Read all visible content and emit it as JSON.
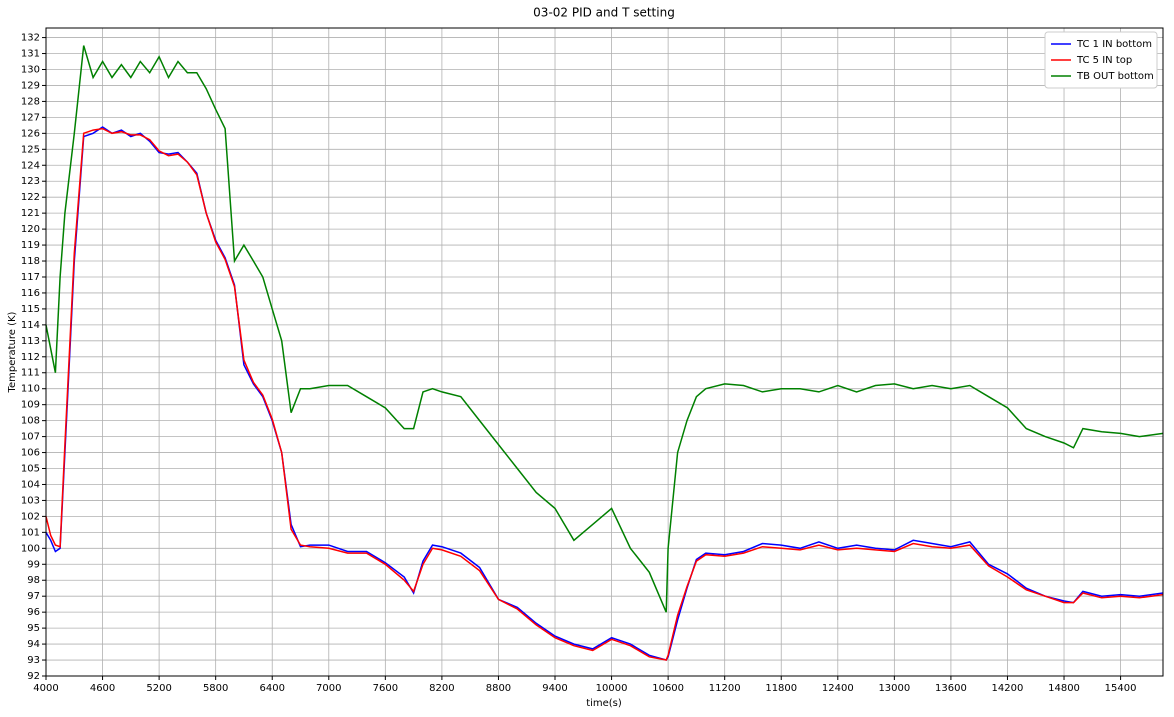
{
  "chart_data": {
    "type": "line",
    "title": "03-02 PID and T setting",
    "x_label": "time(s)",
    "y_label": "Temperature (K)",
    "x": [
      4000,
      4050,
      4100,
      4150,
      4200,
      4300,
      4400,
      4500,
      4600,
      4700,
      4800,
      4900,
      5000,
      5100,
      5200,
      5300,
      5400,
      5500,
      5600,
      5700,
      5800,
      5900,
      6000,
      6100,
      6200,
      6300,
      6400,
      6500,
      6600,
      6700,
      6800,
      7000,
      7200,
      7400,
      7600,
      7800,
      7900,
      8000,
      8100,
      8200,
      8400,
      8600,
      8800,
      9000,
      9200,
      9400,
      9600,
      9800,
      10000,
      10200,
      10400,
      10580,
      10600,
      10700,
      10800,
      10900,
      11000,
      11200,
      11400,
      11600,
      11800,
      12000,
      12200,
      12400,
      12600,
      12800,
      13000,
      13200,
      13400,
      13600,
      13800,
      14000,
      14200,
      14400,
      14600,
      14800,
      14900,
      15000,
      15200,
      15400,
      15600,
      15850
    ],
    "series": [
      {
        "name": "TC 1 IN bottom",
        "color": "#0000ff",
        "values": [
          101,
          100.5,
          99.8,
          100,
          106,
          118,
          125.8,
          126,
          126.4,
          126,
          126.2,
          125.8,
          126,
          125.5,
          124.8,
          124.7,
          124.8,
          124.2,
          123.5,
          121,
          119.3,
          118.2,
          116.5,
          111.5,
          110.3,
          109.5,
          108,
          106,
          101.5,
          100.1,
          100.2,
          100.2,
          99.8,
          99.8,
          99.1,
          98.2,
          97.2,
          99.2,
          100.2,
          100.1,
          99.7,
          98.8,
          96.8,
          96.3,
          95.3,
          94.5,
          94.0,
          93.7,
          94.4,
          94.0,
          93.3,
          93.0,
          93.2,
          95.5,
          97.5,
          99.3,
          99.7,
          99.6,
          99.8,
          100.3,
          100.2,
          100.0,
          100.4,
          100.0,
          100.2,
          100.0,
          99.9,
          100.5,
          100.3,
          100.1,
          100.4,
          99.0,
          98.4,
          97.5,
          97.0,
          96.7,
          96.6,
          97.3,
          97.0,
          97.1,
          97.0,
          97.2
        ]
      },
      {
        "name": "TC 5 IN top",
        "color": "#ff0000",
        "values": [
          102,
          100.8,
          100.2,
          100.1,
          106.5,
          118.5,
          126,
          126.2,
          126.3,
          126,
          126.1,
          125.9,
          125.9,
          125.6,
          124.9,
          124.6,
          124.7,
          124.2,
          123.4,
          121,
          119.2,
          118.1,
          116.4,
          111.8,
          110.4,
          109.6,
          108.1,
          106,
          101.2,
          100.2,
          100.1,
          100.0,
          99.7,
          99.7,
          99.0,
          98.0,
          97.3,
          99.0,
          100.0,
          99.9,
          99.5,
          98.6,
          96.8,
          96.2,
          95.2,
          94.4,
          93.9,
          93.6,
          94.3,
          93.9,
          93.2,
          93.0,
          93.3,
          95.8,
          97.6,
          99.2,
          99.6,
          99.5,
          99.7,
          100.1,
          100.0,
          99.9,
          100.2,
          99.9,
          100.0,
          99.9,
          99.8,
          100.3,
          100.1,
          100.0,
          100.2,
          98.9,
          98.2,
          97.4,
          97.0,
          96.6,
          96.6,
          97.2,
          96.9,
          97.0,
          96.9,
          97.1
        ]
      },
      {
        "name": "TB OUT bottom",
        "color": "#008000",
        "values": [
          114,
          112.5,
          111,
          117,
          121,
          126,
          131.5,
          129.5,
          130.5,
          129.5,
          130.3,
          129.5,
          130.5,
          129.8,
          130.8,
          129.5,
          130.5,
          129.8,
          129.8,
          128.8,
          127.5,
          126.3,
          118,
          119,
          118,
          117,
          115,
          113,
          108.5,
          110,
          110,
          110.2,
          110.2,
          109.5,
          108.8,
          107.5,
          107.5,
          109.8,
          110,
          109.8,
          109.5,
          108,
          106.5,
          105,
          103.5,
          102.5,
          100.5,
          101.5,
          102.5,
          100,
          98.5,
          96,
          100,
          106,
          108,
          109.5,
          110,
          110.3,
          110.2,
          109.8,
          110,
          110,
          109.8,
          110.2,
          109.8,
          110.2,
          110.3,
          110,
          110.2,
          110,
          110.2,
          109.5,
          108.8,
          107.5,
          107,
          106.6,
          106.3,
          107.5,
          107.3,
          107.2,
          107,
          107.2
        ]
      }
    ],
    "xlim": [
      4000,
      15850
    ],
    "ylim": [
      92,
      132.6
    ],
    "xticks": [
      4000,
      4600,
      5200,
      5800,
      6400,
      7000,
      7600,
      8200,
      8800,
      9400,
      10000,
      10600,
      11200,
      11800,
      12400,
      13000,
      13600,
      14200,
      14800,
      15400
    ],
    "yticks": [
      92,
      93,
      94,
      95,
      96,
      97,
      98,
      99,
      100,
      101,
      102,
      103,
      104,
      105,
      106,
      107,
      108,
      109,
      110,
      111,
      112,
      113,
      114,
      115,
      116,
      117,
      118,
      119,
      120,
      121,
      122,
      123,
      124,
      125,
      126,
      127,
      128,
      129,
      130,
      131,
      132
    ],
    "grid": true,
    "legend": "upper right"
  }
}
